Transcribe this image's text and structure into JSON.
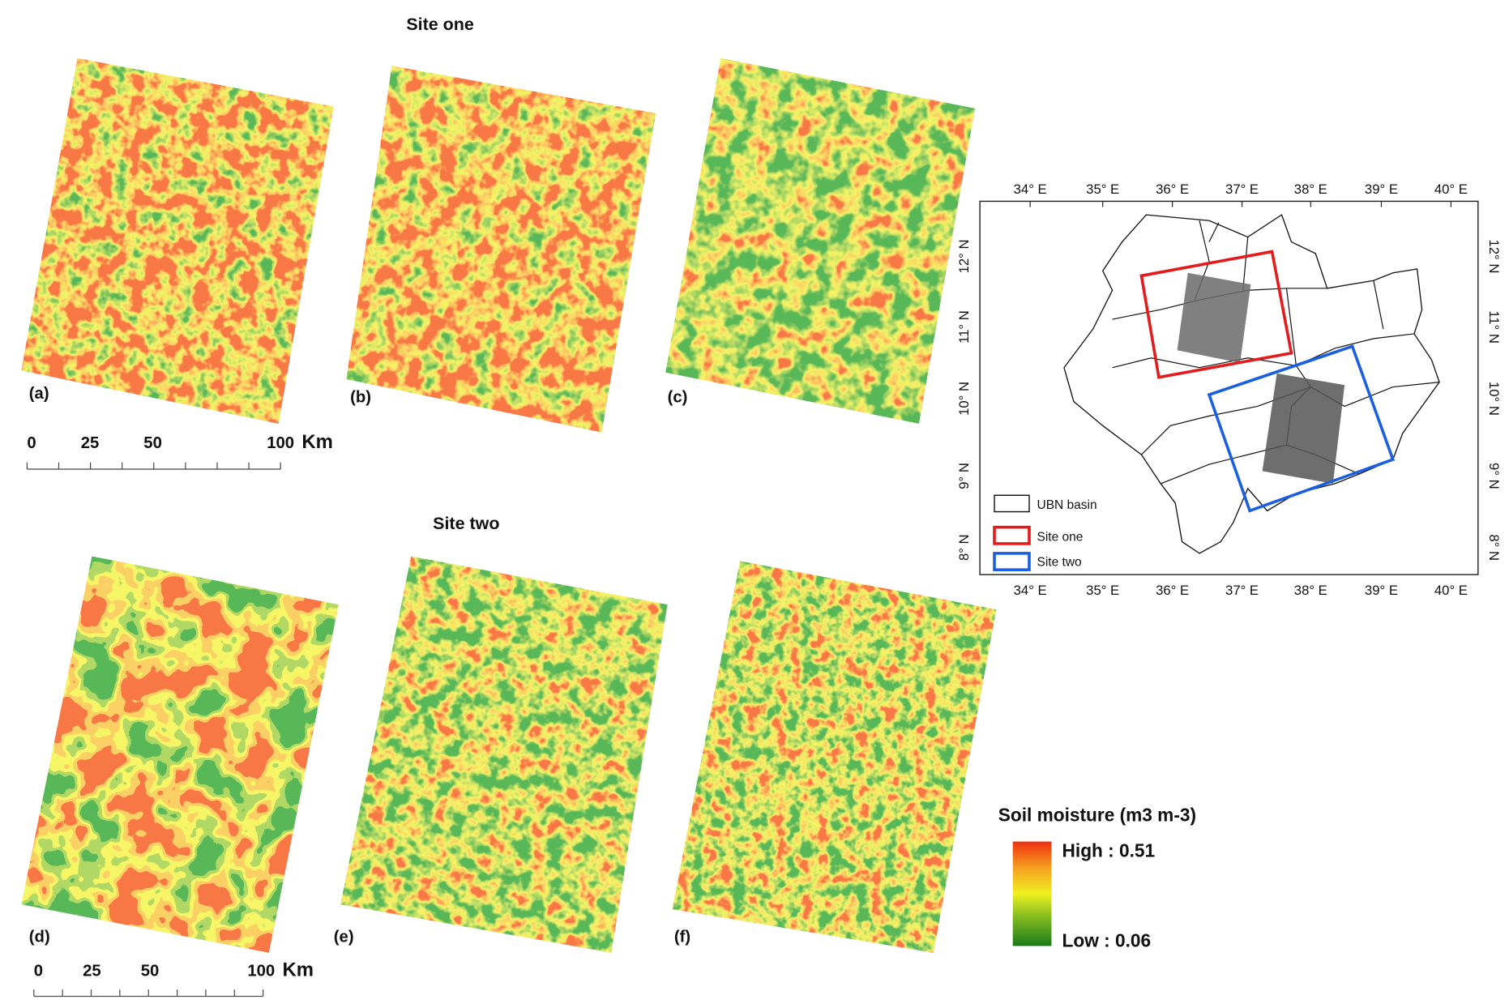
{
  "site_one": {
    "title": "Site one",
    "panels": [
      "(a)",
      "(b)",
      "(c)"
    ],
    "scale_bar": {
      "ticks": [
        "0",
        "25",
        "50",
        "100"
      ],
      "unit": "Km"
    }
  },
  "site_two": {
    "title": "Site two",
    "panels": [
      "(d)",
      "(e)",
      "(f)"
    ],
    "scale_bar": {
      "ticks": [
        "0",
        "25",
        "50",
        "100"
      ],
      "unit": "Km"
    }
  },
  "location_map": {
    "longitude_labels": [
      "34° E",
      "35° E",
      "36° E",
      "37° E",
      "38° E",
      "39° E",
      "40° E"
    ],
    "latitude_labels": [
      "12° N",
      "11° N",
      "10° N",
      "9° N",
      "8° N"
    ],
    "legend": [
      "UBN basin",
      "Site one",
      "Site two"
    ]
  },
  "soil_moisture_legend": {
    "title": "Soil moisture (m3 m-3)",
    "high": "High : 0.51",
    "low": "Low : 0.06"
  }
}
